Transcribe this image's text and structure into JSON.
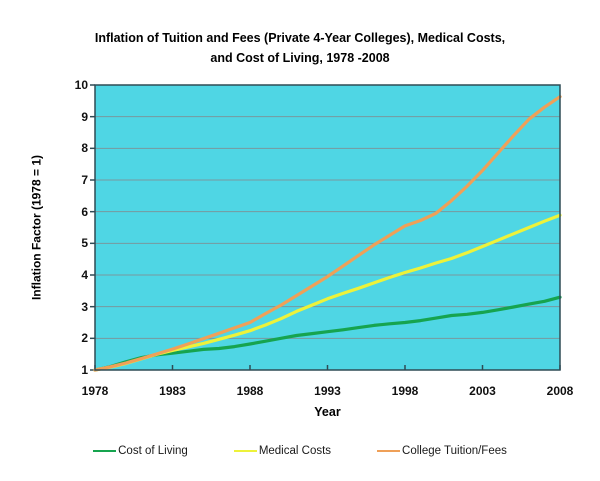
{
  "title": {
    "line1": "Inflation of Tuition and Fees (Private 4-Year Colleges), Medical Costs,",
    "line2": "and Cost of Living, 1978 -2008"
  },
  "x_axis": {
    "title": "Year",
    "tick_labels": [
      "1978",
      "1983",
      "1988",
      "1993",
      "1998",
      "2003",
      "2008"
    ]
  },
  "y_axis": {
    "title": "Inflation Factor (1978 = 1)",
    "tick_labels": [
      "1",
      "2",
      "3",
      "4",
      "5",
      "6",
      "7",
      "8",
      "9",
      "10"
    ]
  },
  "legend": [
    {
      "label": "Cost of Living",
      "color": "#16a44f"
    },
    {
      "label": "Medical Costs",
      "color": "#edf23a"
    },
    {
      "label": "College Tuition/Fees",
      "color": "#efa058"
    }
  ],
  "colors": {
    "plot_background": "#4fd6e4",
    "gridline": "#78989e",
    "axis_border": "#2e4b55",
    "text": "#111111"
  },
  "chart_data": {
    "type": "line",
    "title": "Inflation of Tuition and Fees (Private 4-Year Colleges), Medical Costs, and Cost of Living, 1978 -2008",
    "xlabel": "Year",
    "ylabel": "Inflation Factor (1978 = 1)",
    "xlim": [
      1978,
      2008
    ],
    "ylim": [
      1,
      10
    ],
    "grid": true,
    "legend_position": "bottom",
    "plot_background": "#4fd6e4",
    "x": [
      1978,
      1979,
      1980,
      1981,
      1982,
      1983,
      1984,
      1985,
      1986,
      1987,
      1988,
      1989,
      1990,
      1991,
      1992,
      1993,
      1994,
      1995,
      1996,
      1997,
      1998,
      1999,
      2000,
      2001,
      2002,
      2003,
      2004,
      2005,
      2006,
      2007,
      2008
    ],
    "series": [
      {
        "name": "Cost of Living",
        "color": "#16a44f",
        "values": [
          1.0,
          1.11,
          1.26,
          1.39,
          1.48,
          1.53,
          1.59,
          1.65,
          1.68,
          1.74,
          1.82,
          1.91,
          2.0,
          2.09,
          2.15,
          2.21,
          2.27,
          2.34,
          2.41,
          2.46,
          2.5,
          2.56,
          2.64,
          2.72,
          2.76,
          2.82,
          2.9,
          2.99,
          3.08,
          3.17,
          3.3
        ]
      },
      {
        "name": "Medical Costs",
        "color": "#edf23a",
        "values": [
          1.0,
          1.09,
          1.21,
          1.35,
          1.5,
          1.62,
          1.73,
          1.84,
          1.97,
          2.1,
          2.24,
          2.42,
          2.62,
          2.85,
          3.05,
          3.25,
          3.42,
          3.58,
          3.75,
          3.92,
          4.08,
          4.22,
          4.38,
          4.52,
          4.7,
          4.9,
          5.1,
          5.3,
          5.5,
          5.7,
          5.89
        ]
      },
      {
        "name": "College Tuition/Fees",
        "color": "#efa058",
        "values": [
          1.0,
          1.1,
          1.22,
          1.36,
          1.51,
          1.66,
          1.82,
          1.99,
          2.16,
          2.33,
          2.5,
          2.78,
          3.05,
          3.35,
          3.65,
          3.95,
          4.28,
          4.62,
          4.95,
          5.25,
          5.55,
          5.72,
          5.95,
          6.35,
          6.8,
          7.3,
          7.85,
          8.4,
          8.92,
          9.3,
          9.63
        ]
      }
    ]
  }
}
